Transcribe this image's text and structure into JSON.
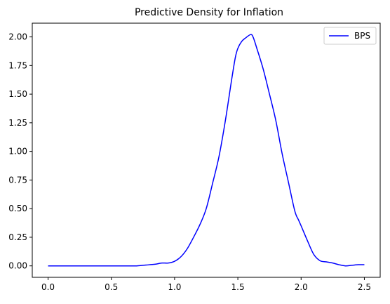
{
  "chart_data": {
    "type": "line",
    "title": "Predictive Density for Inflation",
    "xlabel": "",
    "ylabel": "",
    "xlim": [
      -0.125,
      2.625
    ],
    "ylim": [
      -0.1,
      2.12
    ],
    "xticks": [
      0.0,
      0.5,
      1.0,
      1.5,
      2.0,
      2.5
    ],
    "xtick_labels": [
      "0.0",
      "0.5",
      "1.0",
      "1.5",
      "2.0",
      "2.5"
    ],
    "yticks": [
      0.0,
      0.25,
      0.5,
      0.75,
      1.0,
      1.25,
      1.5,
      1.75,
      2.0
    ],
    "ytick_labels": [
      "0.00",
      "0.25",
      "0.50",
      "0.75",
      "1.00",
      "1.25",
      "1.50",
      "1.75",
      "2.00"
    ],
    "grid": false,
    "legend_position": "top-right",
    "series": [
      {
        "name": "BPS",
        "color": "#0000ff",
        "x": [
          0.0,
          0.2,
          0.4,
          0.6,
          0.7,
          0.8,
          0.85,
          0.9,
          0.95,
          1.0,
          1.05,
          1.1,
          1.15,
          1.2,
          1.25,
          1.3,
          1.35,
          1.4,
          1.45,
          1.48,
          1.5,
          1.53,
          1.56,
          1.6,
          1.62,
          1.65,
          1.7,
          1.75,
          1.8,
          1.85,
          1.9,
          1.95,
          1.98,
          2.0,
          2.05,
          2.1,
          2.15,
          2.2,
          2.25,
          2.3,
          2.35,
          2.4,
          2.45,
          2.5
        ],
        "y": [
          0.0,
          0.0,
          0.0,
          0.0,
          0.0,
          0.01,
          0.015,
          0.025,
          0.025,
          0.04,
          0.08,
          0.15,
          0.25,
          0.36,
          0.5,
          0.72,
          0.95,
          1.26,
          1.62,
          1.82,
          1.9,
          1.96,
          1.99,
          2.02,
          2.0,
          1.9,
          1.72,
          1.5,
          1.27,
          0.98,
          0.73,
          0.48,
          0.4,
          0.35,
          0.22,
          0.1,
          0.045,
          0.035,
          0.025,
          0.01,
          0.0,
          0.005,
          0.01,
          0.01
        ]
      }
    ]
  }
}
